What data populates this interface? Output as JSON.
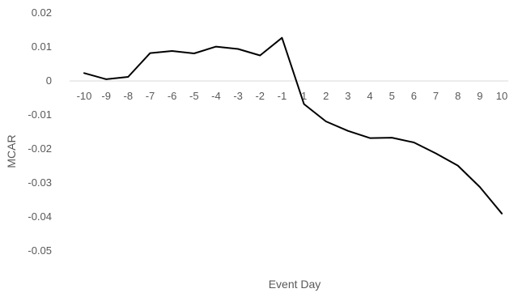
{
  "chart_data": {
    "type": "line",
    "title": "",
    "xlabel": "Event Day",
    "ylabel": "MCAR",
    "categories": [
      "-10",
      "-9",
      "-8",
      "-7",
      "-6",
      "-5",
      "-4",
      "-3",
      "-2",
      "-1",
      "1",
      "2",
      "3",
      "4",
      "5",
      "6",
      "7",
      "8",
      "9",
      "10"
    ],
    "series": [
      {
        "values": [
          0.0023,
          0.0005,
          0.0012,
          0.0082,
          0.0088,
          0.0081,
          0.0101,
          0.0094,
          0.0075,
          0.0127,
          -0.0068,
          -0.0119,
          -0.0147,
          -0.0168,
          -0.0167,
          -0.0181,
          -0.0213,
          -0.0249,
          -0.0312,
          -0.039
        ],
        "color": "#000000"
      }
    ],
    "yticks": [
      "0.02",
      "0.01",
      "0",
      "-0.01",
      "-0.02",
      "-0.03",
      "-0.04",
      "-0.05"
    ],
    "ylim": [
      -0.05,
      0.02
    ],
    "grid": false,
    "legend": "none"
  }
}
